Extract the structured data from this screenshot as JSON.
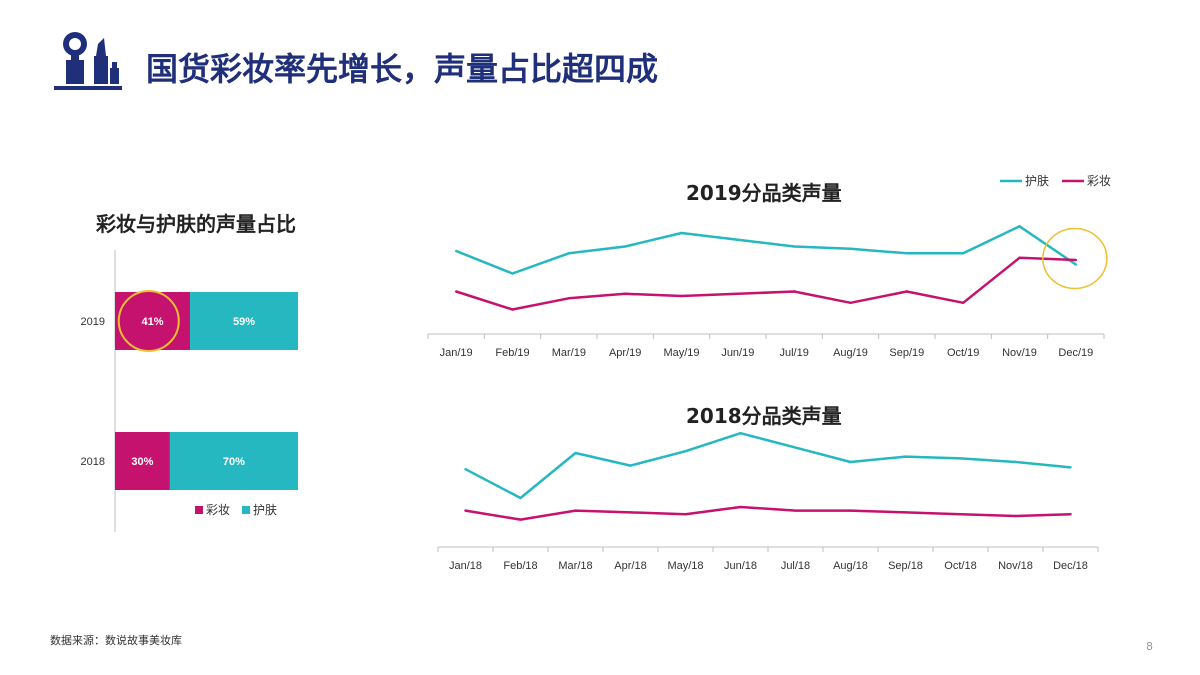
{
  "header": {
    "title": "国货彩妆率先增长，声量占比超四成"
  },
  "colors": {
    "skincare": "#26b8c0",
    "makeup": "#c5126e",
    "highlight": "#f0c030",
    "title": "#1f2f7a"
  },
  "chart_data": [
    {
      "type": "bar",
      "orientation": "horizontal-stacked-100",
      "title": "彩妆与护肤的声量占比",
      "categories": [
        "2019",
        "2018"
      ],
      "series": [
        {
          "name": "彩妆",
          "values": [
            41,
            30
          ],
          "labels": [
            "41%",
            "30%"
          ]
        },
        {
          "name": "护肤",
          "values": [
            59,
            70
          ],
          "labels": [
            "59%",
            "70%"
          ]
        }
      ],
      "legend": "bottom",
      "highlight": "41%"
    },
    {
      "type": "line",
      "title": "2019分品类声量",
      "x": [
        "Jan/19",
        "Feb/19",
        "Mar/19",
        "Apr/19",
        "May/19",
        "Jun/19",
        "Jul/19",
        "Aug/19",
        "Sep/19",
        "Oct/19",
        "Nov/19",
        "Dec/19"
      ],
      "series": [
        {
          "name": "护肤",
          "values": [
            64,
            54,
            63,
            66,
            72,
            69,
            66,
            65,
            63,
            63,
            75,
            58
          ]
        },
        {
          "name": "彩妆",
          "values": [
            46,
            38,
            43,
            45,
            44,
            45,
            46,
            41,
            46,
            41,
            61,
            60
          ]
        }
      ],
      "legend": "top-right",
      "ylim": [
        0,
        100
      ],
      "grid": false
    },
    {
      "type": "line",
      "title": "2018分品类声量",
      "x": [
        "Jan/18",
        "Feb/18",
        "Mar/18",
        "Apr/18",
        "May/18",
        "Jun/18",
        "Jul/18",
        "Aug/18",
        "Sep/18",
        "Oct/18",
        "Nov/18",
        "Dec/18"
      ],
      "series": [
        {
          "name": "护肤",
          "values": [
            56,
            40,
            65,
            58,
            66,
            76,
            68,
            60,
            63,
            62,
            60,
            57
          ]
        },
        {
          "name": "彩妆",
          "values": [
            33,
            28,
            33,
            32,
            31,
            35,
            33,
            33,
            32,
            31,
            30,
            31
          ]
        }
      ],
      "ylim": [
        0,
        100
      ],
      "grid": false
    }
  ],
  "footer": {
    "source": "数据来源：数说故事美妆库",
    "page": "8"
  }
}
